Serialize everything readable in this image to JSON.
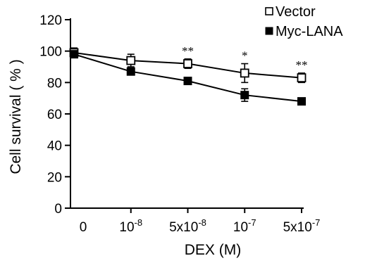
{
  "chart_data": {
    "type": "line",
    "xlabel": "DEX (M)",
    "ylabel": "Cell survival ( % )",
    "ylim": [
      0,
      120
    ],
    "yticks": [
      0,
      20,
      40,
      60,
      80,
      100,
      120
    ],
    "categories": [
      {
        "base": "0",
        "exp": ""
      },
      {
        "base": "10",
        "exp": "-8"
      },
      {
        "base": "5x10",
        "exp": "-8"
      },
      {
        "base": "10",
        "exp": "-7"
      },
      {
        "base": "5x10",
        "exp": "-7"
      }
    ],
    "series": [
      {
        "name": "Vector",
        "marker": "open-square",
        "values": [
          99,
          94,
          92,
          86,
          83
        ],
        "errors": [
          3,
          4,
          3,
          6,
          3
        ]
      },
      {
        "name": "Myc-LANA",
        "marker": "filled-square",
        "values": [
          98,
          87,
          81,
          72,
          68
        ],
        "errors": [
          2,
          2,
          2,
          4,
          2
        ]
      }
    ],
    "annotations": [
      {
        "index": 2,
        "text": "**"
      },
      {
        "index": 3,
        "text": "*"
      },
      {
        "index": 4,
        "text": "**"
      }
    ],
    "legend_position": "top-right"
  }
}
